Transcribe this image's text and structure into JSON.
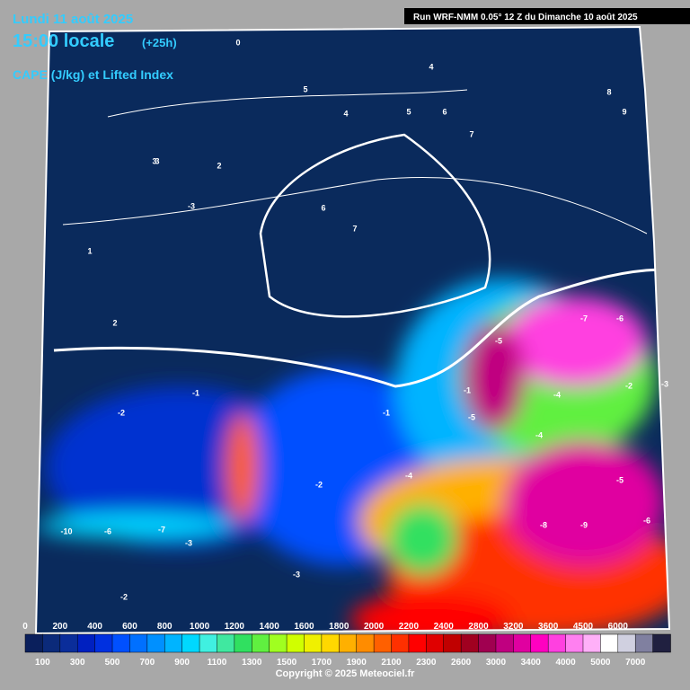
{
  "header": {
    "date": "Lundi 11 août 2025",
    "time": "15:00 locale",
    "lead": "(+25h)",
    "field": "CAPE (J/kg) et Lifted Index",
    "run": "Run WRF-NMM 0.05° 12 Z du Dimanche 10 août 2025"
  },
  "legend": {
    "upper_labels": [
      "0",
      "200",
      "400",
      "600",
      "800",
      "1000",
      "1200",
      "1400",
      "1600",
      "1800",
      "2000",
      "2200",
      "2400",
      "2800",
      "3200",
      "3600",
      "4500",
      "6000"
    ],
    "lower_labels": [
      "100",
      "300",
      "500",
      "700",
      "900",
      "1100",
      "1300",
      "1500",
      "1700",
      "1900",
      "2100",
      "2300",
      "2600",
      "3000",
      "3400",
      "4000",
      "5000",
      "7000"
    ],
    "colors": [
      "#0a1f5c",
      "#0b2a7a",
      "#0a2d9a",
      "#0020c0",
      "#0030e0",
      "#0050ff",
      "#0070ff",
      "#0090ff",
      "#00b4ff",
      "#00d8ff",
      "#40f0e0",
      "#40e8a0",
      "#30e060",
      "#60f040",
      "#a0ff20",
      "#d0ff00",
      "#f0f000",
      "#ffd800",
      "#ffb000",
      "#ff8c00",
      "#ff6000",
      "#ff3000",
      "#ff0000",
      "#e00000",
      "#c00000",
      "#a00020",
      "#a00050",
      "#c00080",
      "#e000a0",
      "#ff00c0",
      "#ff40e0",
      "#ff80f0",
      "#ffb0f8",
      "#ffffff",
      "#d0d0e0",
      "#8080a0",
      "#202040"
    ]
  },
  "contour_labels": [
    "0",
    "4",
    "5",
    "6",
    "7",
    "8",
    "9",
    "4",
    "3",
    "2",
    "1",
    "-1",
    "-2",
    "-3",
    "5",
    "6",
    "7",
    "3",
    "2",
    "-1",
    "-2",
    "-3",
    "-4",
    "-5",
    "-6",
    "-7",
    "-8",
    "-9",
    "-4",
    "-5",
    "-6",
    "-2",
    "-3",
    "-1",
    "-10",
    "-6",
    "-7",
    "-2",
    "-3",
    "-4",
    "-5"
  ],
  "copyright": "Copyright © 2025 Meteociel.fr"
}
